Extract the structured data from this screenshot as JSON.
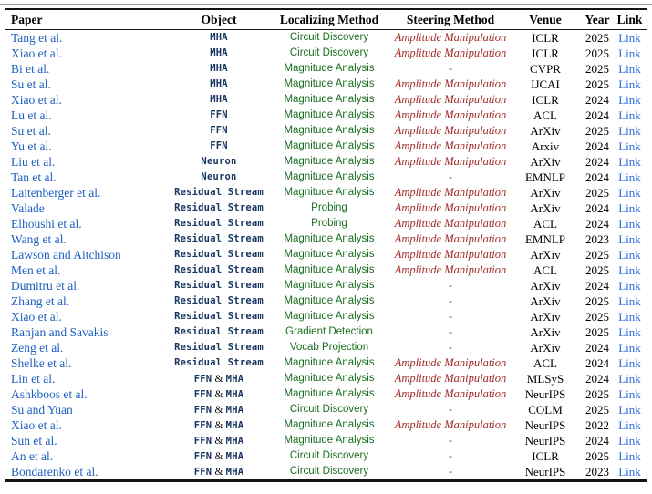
{
  "colors": {
    "paper_link": "#1d60c0",
    "object_navy": "#173762",
    "localizing_green": "#1a6e1f",
    "steering_red": "#a02b26",
    "link_blue": "#2a6ae0",
    "header_text": "#000000",
    "rule": "#141414"
  },
  "table": {
    "columns": [
      {
        "key": "paper",
        "label": "Paper"
      },
      {
        "key": "object",
        "label": "Object"
      },
      {
        "key": "localizing",
        "label": "Localizing Method"
      },
      {
        "key": "steering",
        "label": "Steering Method"
      },
      {
        "key": "venue",
        "label": "Venue"
      },
      {
        "key": "year",
        "label": "Year"
      },
      {
        "key": "link",
        "label": "Link"
      }
    ],
    "rows": [
      {
        "paper": "Tang et al.",
        "object": "MHA",
        "localizing": "Circuit Discovery",
        "steering": "Amplitude Manipulation",
        "venue": "ICLR",
        "year": "2025",
        "link": "Link"
      },
      {
        "paper": "Xiao et al.",
        "object": "MHA",
        "localizing": "Circuit Discovery",
        "steering": "Amplitude Manipulation",
        "venue": "ICLR",
        "year": "2025",
        "link": "Link"
      },
      {
        "paper": "Bi et al.",
        "object": "MHA",
        "localizing": "Magnitude Analysis",
        "steering": "-",
        "venue": "CVPR",
        "year": "2025",
        "link": "Link"
      },
      {
        "paper": "Su et al.",
        "object": "MHA",
        "localizing": "Magnitude Analysis",
        "steering": "Amplitude Manipulation",
        "venue": "IJCAI",
        "year": "2025",
        "link": "Link"
      },
      {
        "paper": "Xiao et al.",
        "object": "MHA",
        "localizing": "Magnitude Analysis",
        "steering": "Amplitude Manipulation",
        "venue": "ICLR",
        "year": "2024",
        "link": "Link"
      },
      {
        "paper": "Lu et al.",
        "object": "FFN",
        "localizing": "Magnitude Analysis",
        "steering": "Amplitude Manipulation",
        "venue": "ACL",
        "year": "2024",
        "link": "Link"
      },
      {
        "paper": "Su et al.",
        "object": "FFN",
        "localizing": "Magnitude Analysis",
        "steering": "Amplitude Manipulation",
        "venue": "ArXiv",
        "year": "2025",
        "link": "Link"
      },
      {
        "paper": "Yu et al.",
        "object": "FFN",
        "localizing": "Magnitude Analysis",
        "steering": "Amplitude Manipulation",
        "venue": "Arxiv",
        "year": "2024",
        "link": "Link"
      },
      {
        "paper": "Liu et al.",
        "object": "Neuron",
        "localizing": "Magnitude Analysis",
        "steering": "Amplitude Manipulation",
        "venue": "ArXiv",
        "year": "2024",
        "link": "Link"
      },
      {
        "paper": "Tan et al.",
        "object": "Neuron",
        "localizing": "Magnitude Analysis",
        "steering": "-",
        "venue": "EMNLP",
        "year": "2024",
        "link": "Link"
      },
      {
        "paper": "Laitenberger et al.",
        "object": "Residual Stream",
        "localizing": "Magnitude Analysis",
        "steering": "Amplitude Manipulation",
        "venue": "ArXiv",
        "year": "2025",
        "link": "Link"
      },
      {
        "paper": "Valade",
        "object": "Residual Stream",
        "localizing": "Probing",
        "steering": "Amplitude Manipulation",
        "venue": "ArXiv",
        "year": "2024",
        "link": "Link"
      },
      {
        "paper": "Elhoushi et al.",
        "object": "Residual Stream",
        "localizing": "Probing",
        "steering": "Amplitude Manipulation",
        "venue": "ACL",
        "year": "2024",
        "link": "Link"
      },
      {
        "paper": "Wang et al.",
        "object": "Residual Stream",
        "localizing": "Magnitude Analysis",
        "steering": "Amplitude Manipulation",
        "venue": "EMNLP",
        "year": "2023",
        "link": "Link"
      },
      {
        "paper": "Lawson and Aitchison",
        "object": "Residual Stream",
        "localizing": "Magnitude Analysis",
        "steering": "Amplitude Manipulation",
        "venue": "ArXiv",
        "year": "2025",
        "link": "Link"
      },
      {
        "paper": "Men et al.",
        "object": "Residual Stream",
        "localizing": "Magnitude Analysis",
        "steering": "Amplitude Manipulation",
        "venue": "ACL",
        "year": "2025",
        "link": "Link"
      },
      {
        "paper": "Dumitru et al.",
        "object": "Residual Stream",
        "localizing": "Magnitude Analysis",
        "steering": "-",
        "venue": "ArXiv",
        "year": "2024",
        "link": "Link"
      },
      {
        "paper": "Zhang et al.",
        "object": "Residual Stream",
        "localizing": "Magnitude Analysis",
        "steering": "-",
        "venue": "ArXiv",
        "year": "2025",
        "link": "Link"
      },
      {
        "paper": "Xiao et al.",
        "object": "Residual Stream",
        "localizing": "Magnitude Analysis",
        "steering": "-",
        "venue": "ArXiv",
        "year": "2025",
        "link": "Link"
      },
      {
        "paper": "Ranjan and Savakis",
        "object": "Residual Stream",
        "localizing": "Gradient Detection",
        "steering": "-",
        "venue": "ArXiv",
        "year": "2025",
        "link": "Link"
      },
      {
        "paper": "Zeng et al.",
        "object": "Residual Stream",
        "localizing": "Vocab Projection",
        "steering": "-",
        "venue": "ArXiv",
        "year": "2024",
        "link": "Link"
      },
      {
        "paper": "Shelke et al.",
        "object": "Residual Stream",
        "localizing": "Magnitude Analysis",
        "steering": "Amplitude Manipulation",
        "venue": "ACL",
        "year": "2024",
        "link": "Link"
      },
      {
        "paper": "Lin et al.",
        "object": "FFN & MHA",
        "localizing": "Magnitude Analysis",
        "steering": "Amplitude Manipulation",
        "venue": "MLSyS",
        "year": "2024",
        "link": "Link"
      },
      {
        "paper": "Ashkboos et al.",
        "object": "FFN & MHA",
        "localizing": "Magnitude Analysis",
        "steering": "Amplitude Manipulation",
        "venue": "NeurIPS",
        "year": "2025",
        "link": "Link"
      },
      {
        "paper": "Su and Yuan",
        "object": "FFN & MHA",
        "localizing": "Circuit Discovery",
        "steering": "-",
        "venue": "COLM",
        "year": "2025",
        "link": "Link"
      },
      {
        "paper": "Xiao et al.",
        "object": "FFN & MHA",
        "localizing": "Magnitude Analysis",
        "steering": "Amplitude Manipulation",
        "venue": "NeurIPS",
        "year": "2022",
        "link": "Link"
      },
      {
        "paper": "Sun et al.",
        "object": "FFN & MHA",
        "localizing": "Magnitude Analysis",
        "steering": "-",
        "venue": "NeurIPS",
        "year": "2024",
        "link": "Link"
      },
      {
        "paper": "An et al.",
        "object": "FFN & MHA",
        "localizing": "Circuit Discovery",
        "steering": "-",
        "venue": "ICLR",
        "year": "2025",
        "link": "Link"
      },
      {
        "paper": "Bondarenko et al.",
        "object": "FFN & MHA",
        "localizing": "Circuit Discovery",
        "steering": "-",
        "venue": "NeurIPS",
        "year": "2023",
        "link": "Link"
      }
    ]
  }
}
